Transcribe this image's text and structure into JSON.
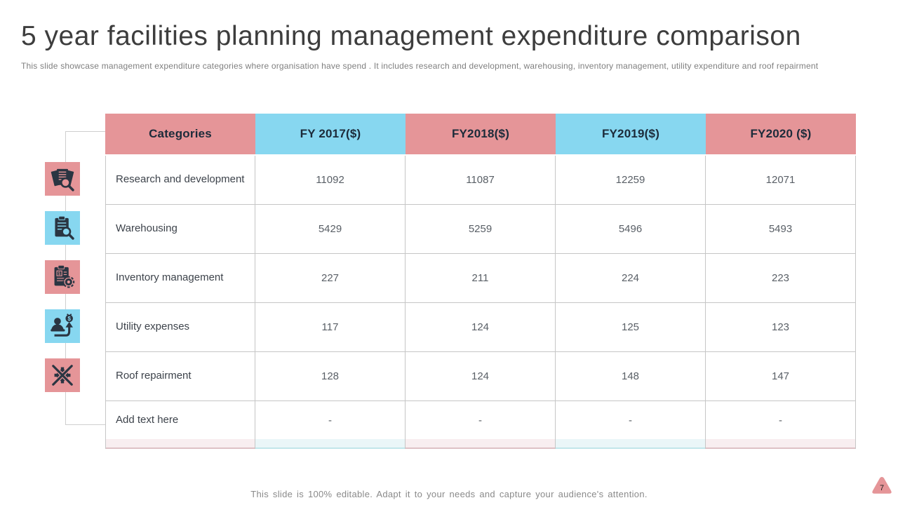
{
  "slide": {
    "title": "5 year facilities planning management expenditure comparison",
    "subtitle": "This slide showcase management expenditure categories where organisation have spend . It includes research and development, warehousing, inventory management, utility expenditure and roof repairment",
    "footer": "This slide is 100% editable. Adapt it to your needs and capture your audience's attention.",
    "page_number": "7"
  },
  "colors": {
    "pink": "#e59598",
    "blue": "#87d7f0",
    "icon_dark": "#2a3542",
    "header_text": "#1c2b3a"
  },
  "icons": [
    {
      "name": "documents-magnifier-icon",
      "color": "pink"
    },
    {
      "name": "clipboard-magnifier-icon",
      "color": "blue"
    },
    {
      "name": "clipboard-dollar-gear-icon",
      "color": "pink"
    },
    {
      "name": "person-money-arrow-icon",
      "color": "blue"
    },
    {
      "name": "gear-crossed-tools-icon",
      "color": "pink"
    }
  ],
  "table": {
    "columns": [
      {
        "label": "Categories",
        "color": "pink"
      },
      {
        "label": "FY 2017($)",
        "color": "blue"
      },
      {
        "label": "FY2018($)",
        "color": "pink"
      },
      {
        "label": "FY2019($)",
        "color": "blue"
      },
      {
        "label": "FY2020 ($)",
        "color": "pink"
      }
    ],
    "rows": [
      {
        "category": "Research and development",
        "values": [
          "11092",
          "11087",
          "12259",
          "12071"
        ]
      },
      {
        "category": "Warehousing",
        "values": [
          "5429",
          "5259",
          "5496",
          "5493"
        ]
      },
      {
        "category": "Inventory management",
        "values": [
          "227",
          "211",
          "224",
          "223"
        ]
      },
      {
        "category": "Utility expenses",
        "values": [
          "117",
          "124",
          "125",
          "123"
        ]
      },
      {
        "category": "Roof repairment",
        "values": [
          "128",
          "124",
          "148",
          "147"
        ]
      },
      {
        "category": "Add text here",
        "values": [
          "-",
          "-",
          "-",
          "-"
        ]
      }
    ]
  },
  "chart_data": {
    "type": "table",
    "title": "5 year facilities planning management expenditure comparison",
    "categories": [
      "Research and development",
      "Warehousing",
      "Inventory management",
      "Utility expenses",
      "Roof repairment",
      "Add text here"
    ],
    "series": [
      {
        "name": "FY 2017($)",
        "values": [
          11092,
          5429,
          227,
          117,
          128,
          null
        ]
      },
      {
        "name": "FY2018($)",
        "values": [
          11087,
          5259,
          211,
          124,
          124,
          null
        ]
      },
      {
        "name": "FY2019($)",
        "values": [
          12259,
          5496,
          224,
          125,
          148,
          null
        ]
      },
      {
        "name": "FY2020 ($)",
        "values": [
          12071,
          5493,
          223,
          123,
          147,
          null
        ]
      }
    ]
  }
}
